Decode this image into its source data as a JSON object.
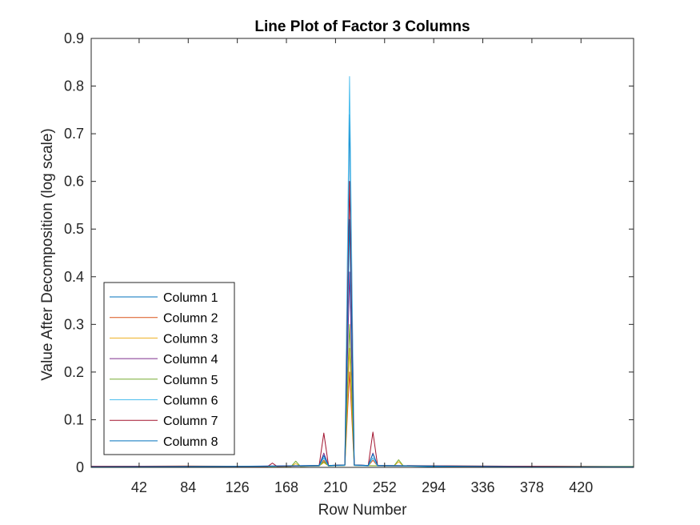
{
  "chart_data": {
    "type": "line",
    "title": "Line Plot of Factor 3 Columns",
    "xlabel": "Row Number",
    "ylabel": "Value After Decomposition (log scale)",
    "xlim": [
      1,
      465
    ],
    "ylim": [
      0,
      0.9
    ],
    "xticks": [
      42,
      84,
      126,
      168,
      210,
      252,
      294,
      336,
      378,
      420
    ],
    "yticks": [
      0,
      0.1,
      0.2,
      0.3,
      0.4,
      0.5,
      0.6,
      0.7,
      0.8,
      0.9
    ],
    "ytick_labels": [
      "0",
      "0.1",
      "0.2",
      "0.3",
      "0.4",
      "0.5",
      "0.6",
      "0.7",
      "0.8",
      "0.9"
    ],
    "legend_position": "bottom-left",
    "grid": false,
    "series": [
      {
        "name": "Column 1",
        "color": "#0072BD",
        "points": [
          [
            1,
            0.001
          ],
          [
            60,
            0.002
          ],
          [
            150,
            0.002
          ],
          [
            196,
            0.004
          ],
          [
            200,
            0.02
          ],
          [
            204,
            0.004
          ],
          [
            218,
            0.005
          ],
          [
            222,
            0.74
          ],
          [
            226,
            0.005
          ],
          [
            238,
            0.004
          ],
          [
            242,
            0.02
          ],
          [
            246,
            0.004
          ],
          [
            300,
            0.001
          ],
          [
            465,
            0.001
          ]
        ]
      },
      {
        "name": "Column 2",
        "color": "#D95319",
        "points": [
          [
            1,
            0.002
          ],
          [
            80,
            0.003
          ],
          [
            160,
            0.002
          ],
          [
            196,
            0.003
          ],
          [
            200,
            0.015
          ],
          [
            204,
            0.003
          ],
          [
            218,
            0.004
          ],
          [
            222,
            0.2
          ],
          [
            226,
            0.004
          ],
          [
            238,
            0.003
          ],
          [
            242,
            0.015
          ],
          [
            246,
            0.003
          ],
          [
            320,
            0.002
          ],
          [
            465,
            0.001
          ]
        ]
      },
      {
        "name": "Column 3",
        "color": "#EDB120",
        "points": [
          [
            1,
            0.001
          ],
          [
            100,
            0.002
          ],
          [
            172,
            0.002
          ],
          [
            176,
            0.008
          ],
          [
            180,
            0.002
          ],
          [
            196,
            0.003
          ],
          [
            200,
            0.01
          ],
          [
            204,
            0.003
          ],
          [
            218,
            0.004
          ],
          [
            222,
            0.25
          ],
          [
            226,
            0.004
          ],
          [
            260,
            0.003
          ],
          [
            264,
            0.012
          ],
          [
            268,
            0.003
          ],
          [
            465,
            0.001
          ]
        ]
      },
      {
        "name": "Column 4",
        "color": "#7E2F8E",
        "points": [
          [
            1,
            0.002
          ],
          [
            120,
            0.002
          ],
          [
            196,
            0.004
          ],
          [
            200,
            0.03
          ],
          [
            204,
            0.004
          ],
          [
            218,
            0.005
          ],
          [
            222,
            0.41
          ],
          [
            226,
            0.005
          ],
          [
            238,
            0.004
          ],
          [
            242,
            0.03
          ],
          [
            246,
            0.004
          ],
          [
            340,
            0.002
          ],
          [
            465,
            0.001
          ]
        ]
      },
      {
        "name": "Column 5",
        "color": "#77AC30",
        "points": [
          [
            1,
            0.001
          ],
          [
            90,
            0.002
          ],
          [
            172,
            0.002
          ],
          [
            176,
            0.013
          ],
          [
            180,
            0.002
          ],
          [
            196,
            0.003
          ],
          [
            200,
            0.012
          ],
          [
            204,
            0.003
          ],
          [
            218,
            0.004
          ],
          [
            222,
            0.3
          ],
          [
            226,
            0.004
          ],
          [
            260,
            0.003
          ],
          [
            264,
            0.016
          ],
          [
            268,
            0.003
          ],
          [
            465,
            0.002
          ]
        ]
      },
      {
        "name": "Column 6",
        "color": "#4DBEEE",
        "points": [
          [
            1,
            0.002
          ],
          [
            140,
            0.002
          ],
          [
            196,
            0.003
          ],
          [
            200,
            0.02
          ],
          [
            204,
            0.003
          ],
          [
            218,
            0.004
          ],
          [
            222,
            0.82
          ],
          [
            226,
            0.004
          ],
          [
            238,
            0.003
          ],
          [
            242,
            0.02
          ],
          [
            246,
            0.003
          ],
          [
            360,
            0.002
          ],
          [
            465,
            0.001
          ]
        ]
      },
      {
        "name": "Column 7",
        "color": "#A2142F",
        "points": [
          [
            1,
            0.002
          ],
          [
            110,
            0.002
          ],
          [
            152,
            0.002
          ],
          [
            156,
            0.009
          ],
          [
            160,
            0.002
          ],
          [
            196,
            0.004
          ],
          [
            200,
            0.072
          ],
          [
            204,
            0.004
          ],
          [
            218,
            0.005
          ],
          [
            222,
            0.6
          ],
          [
            226,
            0.005
          ],
          [
            238,
            0.004
          ],
          [
            242,
            0.074
          ],
          [
            246,
            0.004
          ],
          [
            400,
            0.002
          ],
          [
            465,
            0.001
          ]
        ]
      },
      {
        "name": "Column 8",
        "color": "#0072BD",
        "points": [
          [
            1,
            0.001
          ],
          [
            130,
            0.002
          ],
          [
            196,
            0.004
          ],
          [
            200,
            0.025
          ],
          [
            204,
            0.004
          ],
          [
            218,
            0.005
          ],
          [
            222,
            0.52
          ],
          [
            226,
            0.005
          ],
          [
            238,
            0.004
          ],
          [
            242,
            0.028
          ],
          [
            246,
            0.004
          ],
          [
            380,
            0.001
          ],
          [
            465,
            0.001
          ]
        ]
      }
    ]
  }
}
